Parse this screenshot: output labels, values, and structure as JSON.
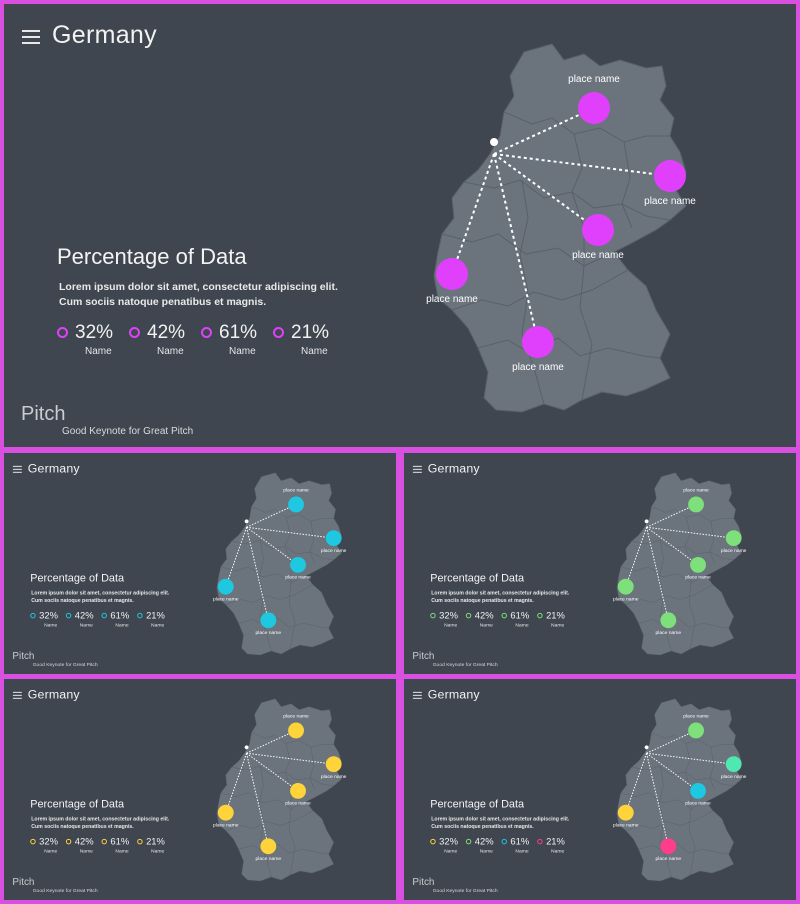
{
  "title": "Germany",
  "heading": "Percentage of Data",
  "description": "Lorem ipsum dolor sit amet, consectetur adipiscing elit. Cum sociis natoque penatibus et magnis.",
  "stats": [
    {
      "value": "32%",
      "label": "Name"
    },
    {
      "value": "42%",
      "label": "Name"
    },
    {
      "value": "61%",
      "label": "Name"
    },
    {
      "value": "21%",
      "label": "Name"
    }
  ],
  "logo": "Pitch",
  "tagline": "Good Keynote for Great Pitch",
  "place_label": "place name",
  "colors": {
    "background": "#3f464f",
    "map": "#6b737d",
    "frame": "#d94fe0"
  },
  "variants": [
    {
      "name": "magenta",
      "markers": [
        "#e040fb",
        "#e040fb",
        "#e040fb",
        "#e040fb",
        "#e040fb"
      ],
      "stat_colors": [
        "#e040fb",
        "#e040fb",
        "#e040fb",
        "#e040fb"
      ]
    },
    {
      "name": "cyan",
      "markers": [
        "#1ec8e0",
        "#1ec8e0",
        "#1ec8e0",
        "#1ec8e0",
        "#1ec8e0"
      ],
      "stat_colors": [
        "#1ec8e0",
        "#1ec8e0",
        "#1ec8e0",
        "#1ec8e0"
      ]
    },
    {
      "name": "green",
      "markers": [
        "#7ee07a",
        "#7ee07a",
        "#7ee07a",
        "#7ee07a",
        "#7ee07a"
      ],
      "stat_colors": [
        "#7ee07a",
        "#7ee07a",
        "#7ee07a",
        "#7ee07a"
      ]
    },
    {
      "name": "yellow",
      "markers": [
        "#ffd43b",
        "#ffd43b",
        "#ffd43b",
        "#ffd43b",
        "#ffd43b"
      ],
      "stat_colors": [
        "#ffd43b",
        "#ffd43b",
        "#ffd43b",
        "#ffd43b"
      ]
    },
    {
      "name": "mixed",
      "markers": [
        "#7ee07a",
        "#4ee8b0",
        "#1ec8e0",
        "#ffd43b",
        "#ff3d8a"
      ],
      "stat_colors": [
        "#ffd43b",
        "#7ee07a",
        "#1ec8e0",
        "#ff3d8a"
      ]
    }
  ]
}
